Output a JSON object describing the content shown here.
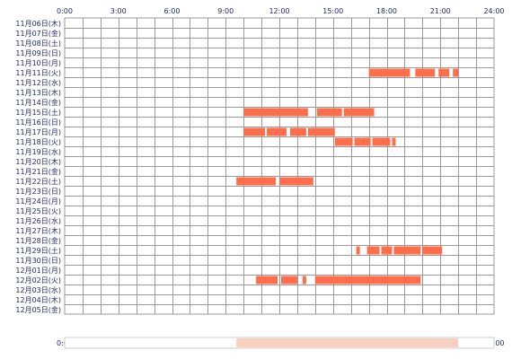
{
  "chart_data": {
    "type": "timeline",
    "x_ticks": [
      "0:00",
      "3:00",
      "6:00",
      "9:00",
      "12:00",
      "15:00",
      "18:00",
      "21:00",
      "24:00"
    ],
    "x_range_hours": [
      0,
      24
    ],
    "rows": [
      "11月06日(木)",
      "11月07日(金)",
      "11月08日(土)",
      "11月09日(日)",
      "11月10日(月)",
      "11月11日(火)",
      "11月12日(水)",
      "11月13日(木)",
      "11月14日(金)",
      "11月15日(土)",
      "11月16日(日)",
      "11月17日(月)",
      "11月18日(火)",
      "11月19日(水)",
      "11月20日(木)",
      "11月21日(金)",
      "11月22日(土)",
      "11月23日(日)",
      "11月24日(月)",
      "11月25日(火)",
      "11月26日(水)",
      "11月27日(木)",
      "11月28日(金)",
      "11月29日(土)",
      "11月30日(日)",
      "12月01日(月)",
      "12月02日(火)",
      "12月03日(水)",
      "12月04日(木)",
      "12月05日(金)"
    ],
    "segments": [
      {
        "row": 5,
        "intervals": [
          [
            17.0,
            19.3
          ],
          [
            19.6,
            20.7
          ],
          [
            20.9,
            21.5
          ],
          [
            21.7,
            22.0
          ]
        ]
      },
      {
        "row": 9,
        "intervals": [
          [
            10.0,
            13.6
          ],
          [
            14.1,
            15.5
          ],
          [
            15.6,
            17.3
          ]
        ]
      },
      {
        "row": 11,
        "intervals": [
          [
            10.0,
            11.2
          ],
          [
            11.3,
            12.4
          ],
          [
            12.6,
            13.5
          ],
          [
            13.6,
            15.1
          ]
        ]
      },
      {
        "row": 12,
        "intervals": [
          [
            15.1,
            16.1
          ],
          [
            16.2,
            17.1
          ],
          [
            17.2,
            18.2
          ],
          [
            18.3,
            18.5
          ]
        ]
      },
      {
        "row": 16,
        "intervals": [
          [
            9.6,
            11.8
          ],
          [
            12.0,
            13.9
          ]
        ]
      },
      {
        "row": 23,
        "intervals": [
          [
            16.3,
            16.5
          ],
          [
            16.9,
            17.6
          ],
          [
            17.7,
            18.3
          ],
          [
            18.4,
            19.9
          ],
          [
            20.0,
            21.1
          ]
        ]
      },
      {
        "row": 26,
        "intervals": [
          [
            10.7,
            11.9
          ],
          [
            12.1,
            13.0
          ],
          [
            13.3,
            13.5
          ],
          [
            14.0,
            19.9
          ]
        ]
      }
    ],
    "colors": {
      "bar": "#ff6e4a",
      "grid": "#999999",
      "label": "#222a66"
    },
    "density_strip_range_hours": [
      9.6,
      22.0
    ]
  }
}
